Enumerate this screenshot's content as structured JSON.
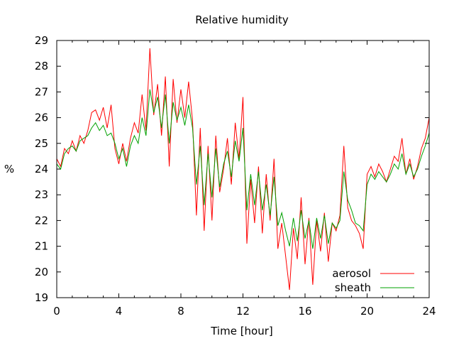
{
  "chart_data": {
    "type": "line",
    "title": "Relative humidity",
    "xlabel": "Time [hour]",
    "ylabel": "%",
    "xlim": [
      0,
      24
    ],
    "ylim": [
      19,
      29
    ],
    "x_ticks": [
      "0",
      "4",
      "8",
      "12",
      "16",
      "20",
      "24"
    ],
    "y_ticks": [
      "19",
      "20",
      "21",
      "22",
      "23",
      "24",
      "25",
      "26",
      "27",
      "28",
      "29"
    ],
    "grid": false,
    "legend_position": "bottom-right",
    "series": [
      {
        "name": "aerosol",
        "color": "#ff0000",
        "x": [
          0,
          0.25,
          0.5,
          0.75,
          1,
          1.25,
          1.5,
          1.75,
          2,
          2.25,
          2.5,
          2.75,
          3,
          3.25,
          3.5,
          3.75,
          4,
          4.25,
          4.5,
          4.75,
          5,
          5.25,
          5.5,
          5.75,
          6,
          6.25,
          6.5,
          6.75,
          7,
          7.25,
          7.5,
          7.75,
          8,
          8.25,
          8.5,
          8.75,
          9,
          9.25,
          9.5,
          9.75,
          10,
          10.25,
          10.5,
          10.75,
          11,
          11.25,
          11.5,
          11.75,
          12,
          12.25,
          12.5,
          12.75,
          13,
          13.25,
          13.5,
          13.75,
          14,
          14.25,
          14.5,
          14.75,
          15,
          15.25,
          15.5,
          15.75,
          16,
          16.25,
          16.5,
          16.75,
          17,
          17.25,
          17.5,
          17.75,
          18,
          18.25,
          18.5,
          18.75,
          19,
          19.25,
          19.5,
          19.75,
          20,
          20.25,
          20.5,
          20.75,
          21,
          21.25,
          21.5,
          21.75,
          22,
          22.25,
          22.5,
          22.75,
          23,
          23.25,
          23.5,
          23.75,
          24
        ],
        "y": [
          24.4,
          24.1,
          24.8,
          24.6,
          25.1,
          24.7,
          25.3,
          25.0,
          25.5,
          26.2,
          26.3,
          25.9,
          26.4,
          25.6,
          26.5,
          24.8,
          24.2,
          25.0,
          24.3,
          25.2,
          25.8,
          25.4,
          26.9,
          25.5,
          28.7,
          26.1,
          27.3,
          25.3,
          27.6,
          24.1,
          27.5,
          25.8,
          27.1,
          26.0,
          27.4,
          25.9,
          22.2,
          25.6,
          21.6,
          24.9,
          22.0,
          25.3,
          23.1,
          24.0,
          25.2,
          23.4,
          25.8,
          24.4,
          26.8,
          21.1,
          23.6,
          21.9,
          24.1,
          21.5,
          23.8,
          22.0,
          24.4,
          20.9,
          21.9,
          20.6,
          19.3,
          21.7,
          20.5,
          22.9,
          20.3,
          22.1,
          19.5,
          22.0,
          20.8,
          22.3,
          20.4,
          21.9,
          21.6,
          22.2,
          24.9,
          22.5,
          22.0,
          21.8,
          21.5,
          20.9,
          23.8,
          24.1,
          23.7,
          24.2,
          23.9,
          23.5,
          24.0,
          24.5,
          24.3,
          25.2,
          23.8,
          24.4,
          23.6,
          24.1,
          24.8,
          25.2,
          26.0
        ]
      },
      {
        "name": "sheath",
        "color": "#00a000",
        "x": [
          0,
          0.25,
          0.5,
          0.75,
          1,
          1.25,
          1.5,
          1.75,
          2,
          2.25,
          2.5,
          2.75,
          3,
          3.25,
          3.5,
          3.75,
          4,
          4.25,
          4.5,
          4.75,
          5,
          5.25,
          5.5,
          5.75,
          6,
          6.25,
          6.5,
          6.75,
          7,
          7.25,
          7.5,
          7.75,
          8,
          8.25,
          8.5,
          8.75,
          9,
          9.25,
          9.5,
          9.75,
          10,
          10.25,
          10.5,
          10.75,
          11,
          11.25,
          11.5,
          11.75,
          12,
          12.25,
          12.5,
          12.75,
          13,
          13.25,
          13.5,
          13.75,
          14,
          14.25,
          14.5,
          14.75,
          15,
          15.25,
          15.5,
          15.75,
          16,
          16.25,
          16.5,
          16.75,
          17,
          17.25,
          17.5,
          17.75,
          18,
          18.25,
          18.5,
          18.75,
          19,
          19.25,
          19.5,
          19.75,
          20,
          20.25,
          20.5,
          20.75,
          21,
          21.25,
          21.5,
          21.75,
          22,
          22.25,
          22.5,
          22.75,
          23,
          23.25,
          23.5,
          23.75,
          24
        ],
        "y": [
          24.2,
          24.0,
          24.6,
          24.8,
          24.9,
          24.7,
          25.1,
          25.2,
          25.3,
          25.6,
          25.8,
          25.5,
          25.7,
          25.3,
          25.4,
          25.0,
          24.4,
          24.8,
          24.1,
          24.9,
          25.3,
          25.0,
          26.0,
          25.3,
          27.1,
          26.2,
          26.8,
          25.6,
          26.9,
          25.0,
          26.6,
          25.9,
          26.4,
          25.7,
          26.5,
          25.6,
          23.4,
          24.9,
          22.6,
          24.6,
          22.9,
          24.8,
          23.3,
          24.2,
          24.7,
          23.7,
          25.1,
          24.3,
          25.6,
          22.4,
          23.8,
          22.6,
          23.9,
          22.4,
          23.4,
          22.2,
          23.7,
          21.8,
          22.3,
          21.6,
          21.0,
          22.1,
          21.2,
          22.4,
          21.3,
          22.0,
          20.9,
          22.1,
          21.3,
          22.2,
          21.1,
          21.9,
          21.7,
          22.0,
          23.9,
          22.8,
          22.4,
          21.9,
          21.8,
          21.6,
          23.4,
          23.8,
          23.6,
          23.9,
          23.7,
          23.5,
          23.8,
          24.2,
          24.0,
          24.6,
          23.8,
          24.2,
          23.7,
          24.0,
          24.5,
          24.9,
          25.4
        ]
      }
    ]
  }
}
